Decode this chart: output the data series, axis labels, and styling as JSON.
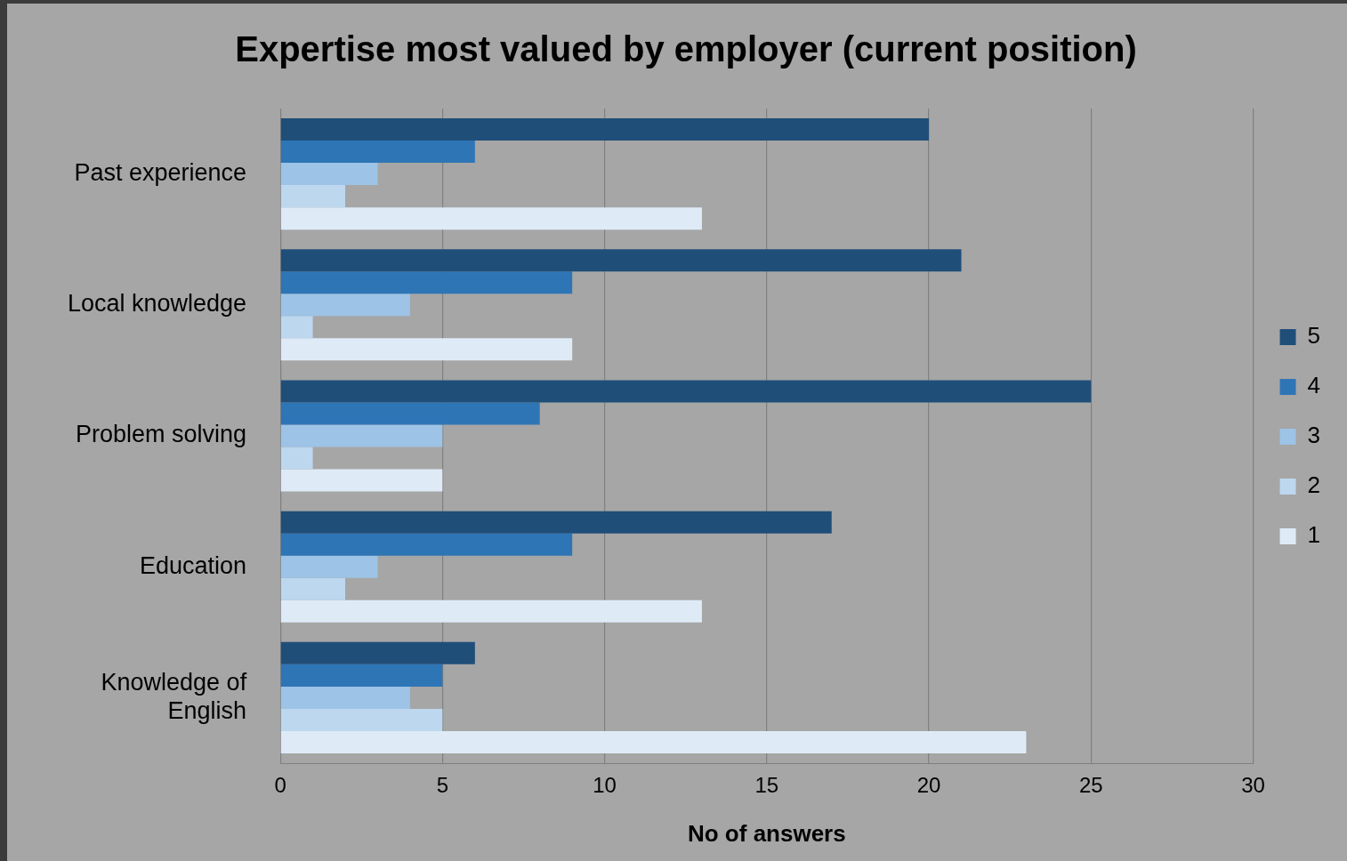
{
  "chart_data": {
    "type": "bar",
    "orientation": "horizontal",
    "title": "Expertise most valued by employer (current position)",
    "xlabel": "No of answers",
    "categories": [
      "Past experience",
      "Local knowledge",
      "Problem solving",
      "Education",
      "Knowledge of English"
    ],
    "series": [
      {
        "name": "5",
        "color": "#1f4e79",
        "values": [
          20,
          21,
          25,
          17,
          6
        ]
      },
      {
        "name": "4",
        "color": "#2e75b6",
        "values": [
          6,
          9,
          8,
          9,
          5
        ]
      },
      {
        "name": "3",
        "color": "#9dc3e6",
        "values": [
          3,
          4,
          5,
          3,
          4
        ]
      },
      {
        "name": "2",
        "color": "#bdd7ee",
        "values": [
          2,
          1,
          1,
          2,
          5
        ]
      },
      {
        "name": "1",
        "color": "#deebf7",
        "values": [
          13,
          9,
          5,
          13,
          23
        ]
      }
    ],
    "xlim": [
      0,
      30
    ],
    "xticks": [
      0,
      5,
      10,
      15,
      20,
      25,
      30
    ],
    "grid": "x",
    "legend": "right"
  }
}
